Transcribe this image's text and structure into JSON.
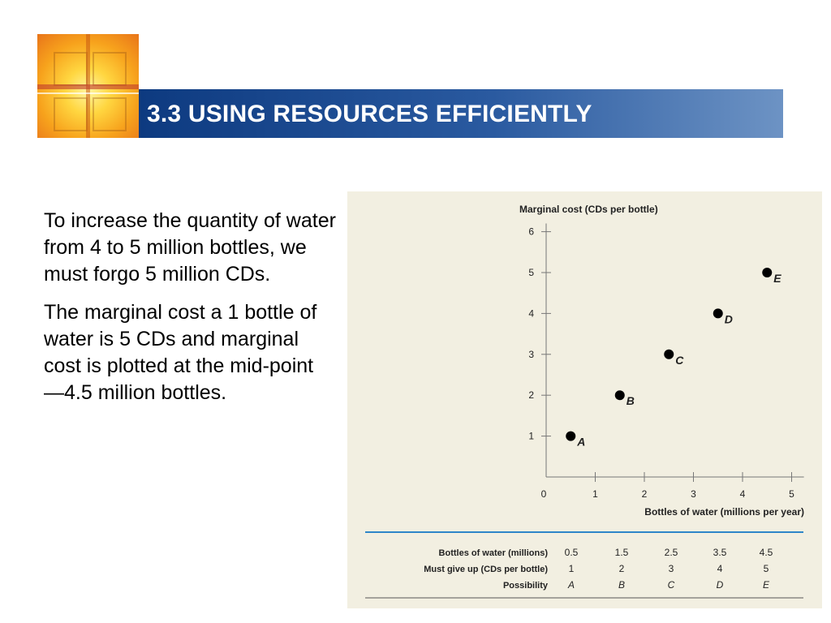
{
  "slide": {
    "title": "3.3 USING RESOURCES EFFICIENTLY",
    "paragraphs": [
      "To increase the quantity of water from 4 to 5 million bottles, we must forgo 5 million CDs.",
      "The marginal cost a 1 bottle of water is 5 CDs and marginal cost is plotted at the mid-point —4.5 million bottles."
    ]
  },
  "chart_data": {
    "type": "scatter",
    "title": "",
    "ylabel": "Marginal cost (CDs per bottle)",
    "xlabel": "Bottles of water (millions per year)",
    "xlim": [
      0,
      5.25
    ],
    "ylim": [
      0,
      6.2
    ],
    "x_ticks": [
      "0",
      "1",
      "2",
      "3",
      "4",
      "5"
    ],
    "y_ticks": [
      "1",
      "2",
      "3",
      "4",
      "5",
      "6"
    ],
    "x": [
      0.5,
      1.5,
      2.5,
      3.5,
      4.5
    ],
    "y": [
      1,
      2,
      3,
      4,
      5
    ],
    "point_labels": [
      "A",
      "B",
      "C",
      "D",
      "E"
    ],
    "marker_color": "#000000"
  },
  "table": {
    "rows": [
      {
        "header": "Bottles of water (millions)",
        "values": [
          "0.5",
          "1.5",
          "2.5",
          "3.5",
          "4.5"
        ]
      },
      {
        "header": "Must give up (CDs per bottle)",
        "values": [
          "1",
          "2",
          "3",
          "4",
          "5"
        ]
      },
      {
        "header": "Possibility",
        "values": [
          "A",
          "B",
          "C",
          "D",
          "E"
        ],
        "italic": true
      }
    ]
  },
  "colors": {
    "title_bar": "#1e4d92",
    "figure_bg": "#f2efe1",
    "table_rule": "#2e86c8"
  }
}
